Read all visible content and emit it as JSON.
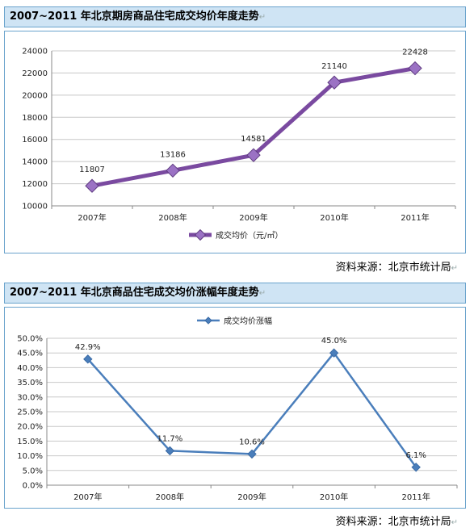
{
  "chart_data": [
    {
      "type": "line",
      "title": "2007~2011 年北京期房商品住宅成交均价年度走势",
      "categories": [
        "2007年",
        "2008年",
        "2009年",
        "2010年",
        "2011年"
      ],
      "series": [
        {
          "name": "成交均价（元/㎡）",
          "values": [
            11807,
            13186,
            14581,
            21140,
            22428
          ],
          "color": "#7a4aa0"
        }
      ],
      "data_labels": [
        "11807",
        "13186",
        "14581",
        "21140",
        "22428"
      ],
      "ylim": [
        10000,
        24000
      ],
      "yticks": [
        "10000",
        "12000",
        "14000",
        "16000",
        "18000",
        "20000",
        "22000",
        "24000"
      ],
      "grid": true,
      "legend": "bottom"
    },
    {
      "type": "line",
      "title": "2007~2011 年北京商品住宅成交均价涨幅年度走势",
      "categories": [
        "2007年",
        "2008年",
        "2009年",
        "2010年",
        "2011年"
      ],
      "series": [
        {
          "name": "成交均价涨幅",
          "values": [
            42.9,
            11.7,
            10.6,
            45.0,
            6.1
          ],
          "color": "#4a7ebb"
        }
      ],
      "data_labels": [
        "42.9%",
        "11.7%",
        "10.6%",
        "45.0%",
        "6.1%"
      ],
      "ylim": [
        0,
        50
      ],
      "yticks": [
        "0.0%",
        "5.0%",
        "10.0%",
        "15.0%",
        "20.0%",
        "25.0%",
        "30.0%",
        "35.0%",
        "40.0%",
        "45.0%",
        "50.0%"
      ],
      "grid": true,
      "legend": "top"
    }
  ],
  "source_text": "资料来源：北京市统计局",
  "para_mark": "↵"
}
